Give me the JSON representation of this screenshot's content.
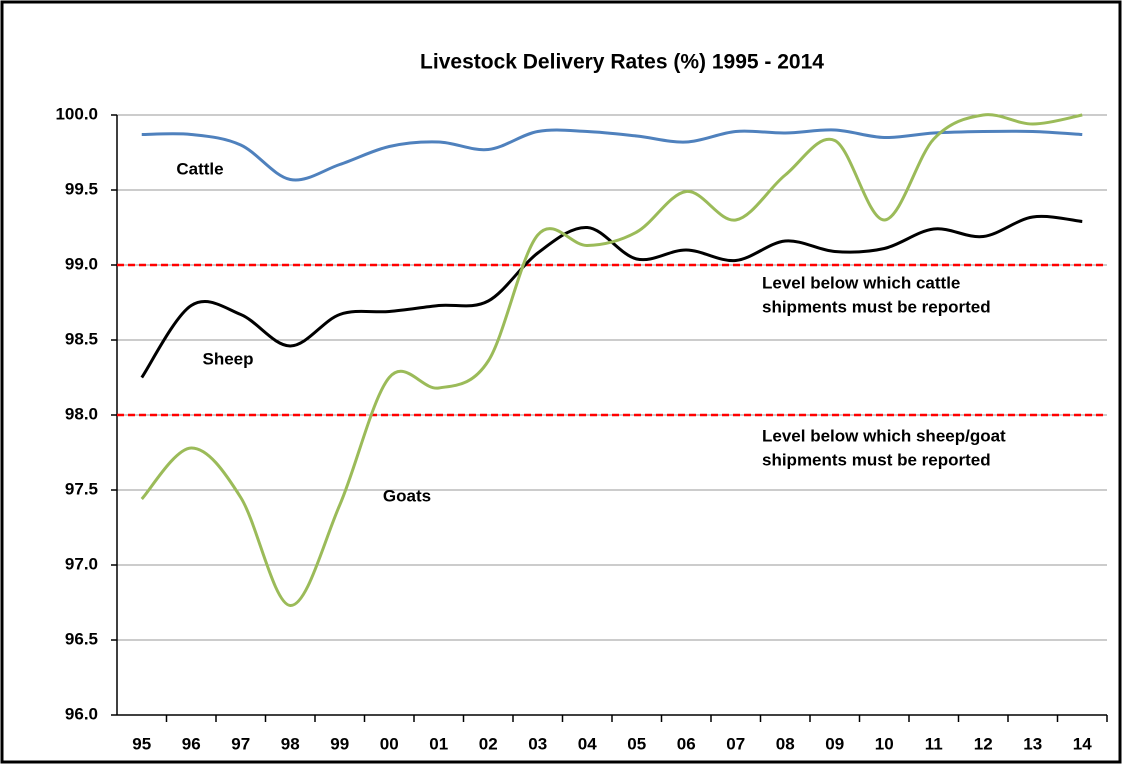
{
  "chart_data": {
    "type": "line",
    "title": "Livestock Delivery Rates (%) 1995 - 2014",
    "categories": [
      "95",
      "96",
      "97",
      "98",
      "99",
      "00",
      "01",
      "02",
      "03",
      "04",
      "05",
      "06",
      "07",
      "08",
      "09",
      "10",
      "11",
      "12",
      "13",
      "14"
    ],
    "series": [
      {
        "name": "Cattle",
        "color": "#4f81bd",
        "values": [
          99.87,
          99.87,
          99.8,
          99.57,
          99.67,
          99.79,
          99.82,
          99.77,
          99.89,
          99.89,
          99.86,
          99.82,
          99.89,
          99.88,
          99.9,
          99.85,
          99.88,
          99.89,
          99.89,
          99.87
        ]
      },
      {
        "name": "Sheep",
        "color": "#000000",
        "values": [
          98.25,
          98.73,
          98.67,
          98.46,
          98.67,
          98.69,
          98.73,
          98.76,
          99.08,
          99.25,
          99.04,
          99.1,
          99.03,
          99.16,
          99.09,
          99.11,
          99.24,
          99.19,
          99.32,
          99.29
        ]
      },
      {
        "name": "Goats",
        "color": "#9bbb59",
        "values": [
          97.44,
          97.78,
          97.45,
          96.73,
          97.4,
          98.25,
          98.18,
          98.36,
          99.2,
          99.13,
          99.22,
          99.49,
          99.3,
          99.6,
          99.83,
          99.3,
          99.84,
          100.0,
          99.94,
          100.0
        ]
      }
    ],
    "reference_lines": [
      {
        "value": 99,
        "color": "#ff0000",
        "label": [
          "Level below which cattle",
          "shipments must be reported"
        ]
      },
      {
        "value": 98,
        "color": "#ff0000",
        "label": [
          "Level below which sheep/goat",
          "shipments must be reported"
        ]
      }
    ],
    "ylim": [
      96,
      100
    ],
    "yticks": [
      {
        "value": 96,
        "label": "96.0"
      },
      {
        "value": 96.5,
        "label": "96.5"
      },
      {
        "value": 97,
        "label": "97.0"
      },
      {
        "value": 97.5,
        "label": "97.5"
      },
      {
        "value": 98,
        "label": "98.0"
      },
      {
        "value": 98.5,
        "label": "98.5"
      },
      {
        "value": 99,
        "label": "99.0"
      },
      {
        "value": 99.5,
        "label": "99.5"
      },
      {
        "value": 100,
        "label": "100.0"
      }
    ],
    "grid": true
  }
}
